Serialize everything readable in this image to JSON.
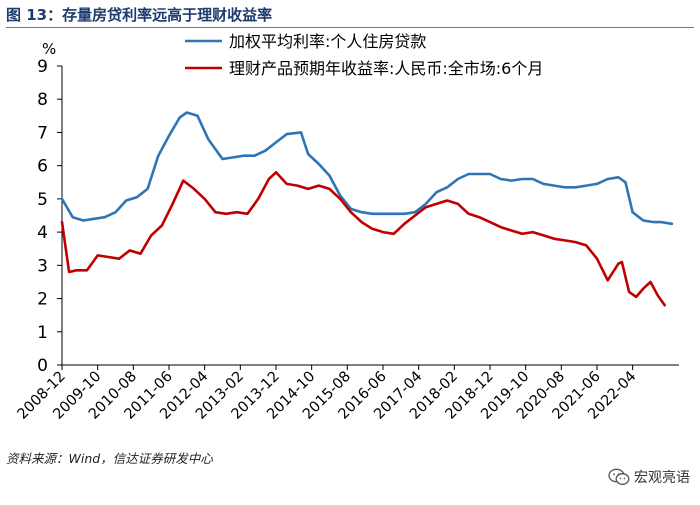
{
  "figure_title": "图 13：存量房贷利率远高于理财收益率",
  "source_note": "资料来源：Wind，信达证券研发中心",
  "watermark": "宏观亮语",
  "watermark_icon": "wechat-icon",
  "chart_data": {
    "type": "line",
    "ylabel": "%",
    "ylim": [
      0,
      9
    ],
    "yticks": [
      0,
      1,
      2,
      3,
      4,
      5,
      6,
      7,
      8,
      9
    ],
    "xlim": [
      "2008-12",
      "2023-05"
    ],
    "xticks": [
      "2008-12",
      "2009-10",
      "2010-08",
      "2011-06",
      "2012-04",
      "2013-02",
      "2013-12",
      "2014-10",
      "2015-08",
      "2016-06",
      "2017-04",
      "2018-02",
      "2018-12",
      "2019-10",
      "2020-08",
      "2021-06",
      "2022-04"
    ],
    "grid": false,
    "legend": "top",
    "series": [
      {
        "name": "加权平均利率:个人住房贷款",
        "color": "#2e75b6",
        "points": [
          [
            "2008-12",
            5.0
          ],
          [
            "2009-03",
            4.45
          ],
          [
            "2009-06",
            4.35
          ],
          [
            "2009-09",
            4.4
          ],
          [
            "2009-12",
            4.45
          ],
          [
            "2010-03",
            4.6
          ],
          [
            "2010-06",
            4.95
          ],
          [
            "2010-09",
            5.05
          ],
          [
            "2010-12",
            5.3
          ],
          [
            "2011-03",
            6.3
          ],
          [
            "2011-06",
            6.9
          ],
          [
            "2011-09",
            7.45
          ],
          [
            "2011-11",
            7.6
          ],
          [
            "2012-02",
            7.5
          ],
          [
            "2012-05",
            6.8
          ],
          [
            "2012-09",
            6.2
          ],
          [
            "2012-12",
            6.25
          ],
          [
            "2013-03",
            6.3
          ],
          [
            "2013-06",
            6.3
          ],
          [
            "2013-09",
            6.45
          ],
          [
            "2013-12",
            6.7
          ],
          [
            "2014-03",
            6.95
          ],
          [
            "2014-07",
            7.0
          ],
          [
            "2014-09",
            6.35
          ],
          [
            "2014-12",
            6.05
          ],
          [
            "2015-03",
            5.7
          ],
          [
            "2015-06",
            5.1
          ],
          [
            "2015-09",
            4.7
          ],
          [
            "2015-12",
            4.6
          ],
          [
            "2016-03",
            4.55
          ],
          [
            "2016-06",
            4.55
          ],
          [
            "2016-09",
            4.55
          ],
          [
            "2016-12",
            4.55
          ],
          [
            "2017-03",
            4.6
          ],
          [
            "2017-06",
            4.85
          ],
          [
            "2017-09",
            5.2
          ],
          [
            "2017-12",
            5.35
          ],
          [
            "2018-03",
            5.6
          ],
          [
            "2018-06",
            5.75
          ],
          [
            "2018-09",
            5.75
          ],
          [
            "2018-12",
            5.75
          ],
          [
            "2019-03",
            5.6
          ],
          [
            "2019-06",
            5.55
          ],
          [
            "2019-09",
            5.6
          ],
          [
            "2019-12",
            5.6
          ],
          [
            "2020-03",
            5.45
          ],
          [
            "2020-06",
            5.4
          ],
          [
            "2020-09",
            5.35
          ],
          [
            "2020-12",
            5.35
          ],
          [
            "2021-03",
            5.4
          ],
          [
            "2021-06",
            5.45
          ],
          [
            "2021-09",
            5.6
          ],
          [
            "2021-12",
            5.65
          ],
          [
            "2022-02",
            5.5
          ],
          [
            "2022-04",
            4.6
          ],
          [
            "2022-07",
            4.35
          ],
          [
            "2022-10",
            4.3
          ],
          [
            "2022-12",
            4.3
          ],
          [
            "2023-03",
            4.25
          ]
        ]
      },
      {
        "name": "理财产品预期年收益率:人民币:全市场:6个月",
        "color": "#c00000",
        "points": [
          [
            "2008-12",
            4.3
          ],
          [
            "2009-02",
            2.8
          ],
          [
            "2009-04",
            2.85
          ],
          [
            "2009-07",
            2.85
          ],
          [
            "2009-10",
            3.3
          ],
          [
            "2010-01",
            3.25
          ],
          [
            "2010-04",
            3.2
          ],
          [
            "2010-07",
            3.45
          ],
          [
            "2010-10",
            3.35
          ],
          [
            "2011-01",
            3.9
          ],
          [
            "2011-04",
            4.2
          ],
          [
            "2011-07",
            4.85
          ],
          [
            "2011-10",
            5.55
          ],
          [
            "2012-01",
            5.3
          ],
          [
            "2012-04",
            5.0
          ],
          [
            "2012-07",
            4.6
          ],
          [
            "2012-10",
            4.55
          ],
          [
            "2013-01",
            4.6
          ],
          [
            "2013-04",
            4.55
          ],
          [
            "2013-07",
            5.0
          ],
          [
            "2013-10",
            5.6
          ],
          [
            "2013-12",
            5.8
          ],
          [
            "2014-03",
            5.45
          ],
          [
            "2014-06",
            5.4
          ],
          [
            "2014-09",
            5.3
          ],
          [
            "2014-12",
            5.4
          ],
          [
            "2015-03",
            5.3
          ],
          [
            "2015-06",
            5.0
          ],
          [
            "2015-09",
            4.6
          ],
          [
            "2015-12",
            4.3
          ],
          [
            "2016-03",
            4.1
          ],
          [
            "2016-06",
            4.0
          ],
          [
            "2016-09",
            3.95
          ],
          [
            "2016-12",
            4.25
          ],
          [
            "2017-03",
            4.5
          ],
          [
            "2017-06",
            4.75
          ],
          [
            "2017-09",
            4.85
          ],
          [
            "2017-12",
            4.95
          ],
          [
            "2018-03",
            4.85
          ],
          [
            "2018-06",
            4.55
          ],
          [
            "2018-09",
            4.45
          ],
          [
            "2018-12",
            4.3
          ],
          [
            "2019-03",
            4.15
          ],
          [
            "2019-06",
            4.05
          ],
          [
            "2019-09",
            3.95
          ],
          [
            "2019-12",
            4.0
          ],
          [
            "2020-03",
            3.9
          ],
          [
            "2020-06",
            3.8
          ],
          [
            "2020-09",
            3.75
          ],
          [
            "2020-12",
            3.7
          ],
          [
            "2021-03",
            3.6
          ],
          [
            "2021-06",
            3.2
          ],
          [
            "2021-09",
            2.55
          ],
          [
            "2021-12",
            3.05
          ],
          [
            "2022-01",
            3.1
          ],
          [
            "2022-03",
            2.2
          ],
          [
            "2022-05",
            2.05
          ],
          [
            "2022-07",
            2.3
          ],
          [
            "2022-09",
            2.5
          ],
          [
            "2022-11",
            2.1
          ],
          [
            "2023-01",
            1.8
          ]
        ]
      }
    ]
  }
}
